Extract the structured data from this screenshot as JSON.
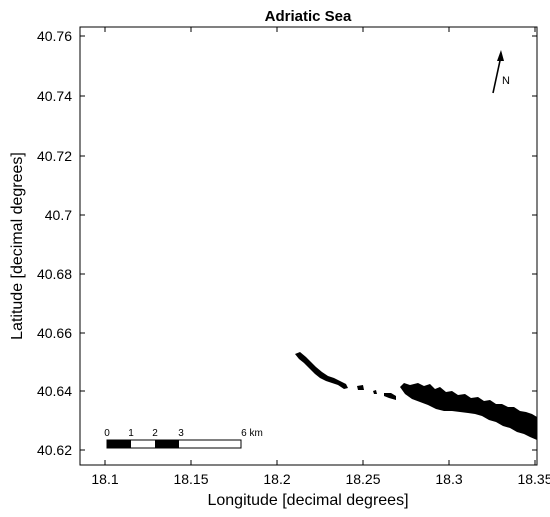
{
  "title": "Adriatic Sea",
  "x_axis": {
    "label": "Longitude [decimal degrees]",
    "ticks": [
      "18.1",
      "18.15",
      "18.2",
      "18.25",
      "18.3",
      "18.35"
    ],
    "range": [
      18.09,
      18.355
    ]
  },
  "y_axis": {
    "label": "Latitude [decimal degrees]",
    "ticks": [
      "40.62",
      "40.64",
      "40.66",
      "40.68",
      "40.7",
      "40.72",
      "40.74",
      "40.76"
    ],
    "range": [
      40.6148,
      40.7649
    ]
  },
  "north_arrow": {
    "label": "N"
  },
  "scale_bar": {
    "labels": [
      "0",
      "1",
      "2",
      "3",
      "6 km"
    ]
  },
  "colors": {
    "land": "#000000",
    "background": "#ffffff"
  },
  "icons": [
    "north-arrow-icon"
  ]
}
